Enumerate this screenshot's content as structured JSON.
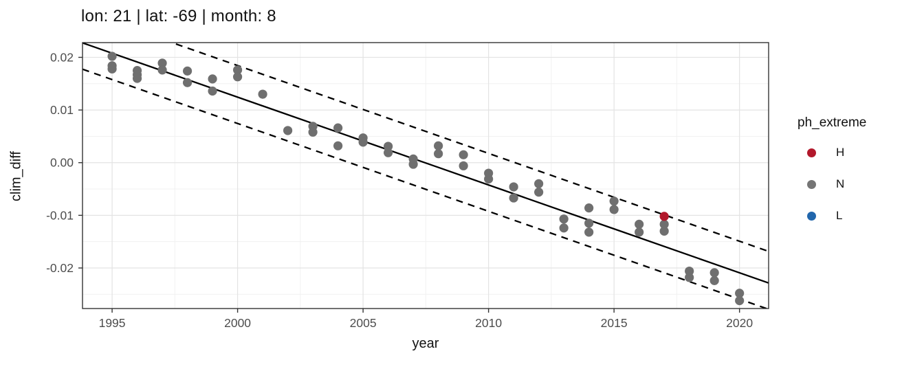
{
  "title": "lon: 21 | lat: -69 | month: 8",
  "chart_data": {
    "type": "scatter",
    "title": "lon: 21 | lat: -69 | month: 8",
    "xlabel": "year",
    "ylabel": "clim_diff",
    "xlim": [
      1993.82,
      2021.16
    ],
    "ylim": [
      -0.0277,
      0.0228
    ],
    "grid": true,
    "x_ticks": [
      1995,
      2000,
      2005,
      2010,
      2015,
      2020
    ],
    "x_tick_labels": [
      "1995",
      "2000",
      "2005",
      "2010",
      "2015",
      "2020"
    ],
    "x_minor_ticks": [
      1997.5,
      2002.5,
      2007.5,
      2012.5,
      2017.5
    ],
    "y_ticks": [
      0.02,
      0.01,
      0.0,
      -0.01,
      -0.02
    ],
    "y_tick_labels": [
      "0.02",
      "0.01",
      "0.00",
      "-0.01",
      "-0.02"
    ],
    "y_minor_ticks": [
      0.015,
      0.005,
      -0.005,
      -0.015,
      -0.025
    ],
    "colors": {
      "grid_major": "#e3e3e3",
      "grid_minor": "#f1f1f1",
      "panel_border": "#333333",
      "tick_label": "#4d4d4d",
      "line": "#000000"
    },
    "legend": {
      "title": "ph_extreme",
      "position": "right",
      "entries": [
        {
          "label": "H",
          "color": "#b2182b"
        },
        {
          "label": "N",
          "color": "#757575"
        },
        {
          "label": "L",
          "color": "#2166ac"
        }
      ]
    },
    "series": [
      {
        "name": "N",
        "color": "#6f6f6f",
        "points": [
          [
            1995,
            0.0202
          ],
          [
            1995,
            0.0184
          ],
          [
            1995,
            0.0178
          ],
          [
            1996,
            0.0175
          ],
          [
            1996,
            0.0167
          ],
          [
            1996,
            0.016
          ],
          [
            1997,
            0.0189
          ],
          [
            1997,
            0.0176
          ],
          [
            1998,
            0.0174
          ],
          [
            1998,
            0.0152
          ],
          [
            1999,
            0.0159
          ],
          [
            1999,
            0.0136
          ],
          [
            2000,
            0.0176
          ],
          [
            2000,
            0.0163
          ],
          [
            2001,
            0.013
          ],
          [
            2002,
            0.0061
          ],
          [
            2003,
            0.0069
          ],
          [
            2003,
            0.0058
          ],
          [
            2004,
            0.0066
          ],
          [
            2004,
            0.0032
          ],
          [
            2005,
            0.0047
          ],
          [
            2005,
            0.0039
          ],
          [
            2006,
            0.0031
          ],
          [
            2006,
            0.0019
          ],
          [
            2007,
            0.0007
          ],
          [
            2007,
            -0.0003
          ],
          [
            2008,
            0.0032
          ],
          [
            2008,
            0.0017
          ],
          [
            2009,
            0.0015
          ],
          [
            2009,
            -0.0006
          ],
          [
            2010,
            -0.002
          ],
          [
            2010,
            -0.0031
          ],
          [
            2011,
            -0.0046
          ],
          [
            2011,
            -0.0067
          ],
          [
            2012,
            -0.004
          ],
          [
            2012,
            -0.0056
          ],
          [
            2013,
            -0.0107
          ],
          [
            2013,
            -0.0124
          ],
          [
            2014,
            -0.0086
          ],
          [
            2014,
            -0.0115
          ],
          [
            2014,
            -0.0132
          ],
          [
            2015,
            -0.0073
          ],
          [
            2015,
            -0.0089
          ],
          [
            2016,
            -0.0117
          ],
          [
            2016,
            -0.0132
          ],
          [
            2017,
            -0.0117
          ],
          [
            2017,
            -0.013
          ],
          [
            2018,
            -0.0206
          ],
          [
            2018,
            -0.0218
          ],
          [
            2019,
            -0.0209
          ],
          [
            2019,
            -0.0224
          ],
          [
            2020,
            -0.0248
          ],
          [
            2020,
            -0.0262
          ]
        ]
      },
      {
        "name": "H",
        "color": "#b2182b",
        "points": [
          [
            2017,
            -0.0102
          ]
        ]
      },
      {
        "name": "L",
        "color": "#2166ac",
        "points": []
      }
    ],
    "fit_line": {
      "style": "solid",
      "x": [
        1993.82,
        2021.16
      ],
      "y": [
        0.02275,
        -0.02285
      ]
    },
    "band_lines": [
      {
        "style": "dashed",
        "offset": 0.006
      },
      {
        "style": "dashed",
        "offset": -0.005
      }
    ],
    "point_radius": 6.6
  }
}
